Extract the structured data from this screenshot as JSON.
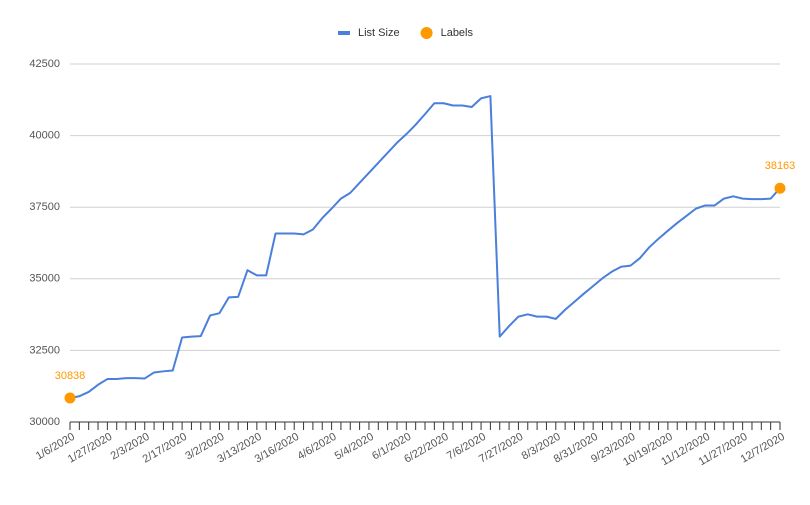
{
  "chart_data": {
    "type": "line",
    "categories": [
      "1/6/2020",
      null,
      null,
      null,
      "1/27/2020",
      null,
      null,
      null,
      "2/3/2020",
      null,
      null,
      null,
      "2/17/2020",
      null,
      null,
      null,
      "3/2/2020",
      null,
      null,
      null,
      "3/13/2020",
      null,
      null,
      null,
      "3/16/2020",
      null,
      null,
      null,
      "4/6/2020",
      null,
      null,
      null,
      "5/4/2020",
      null,
      null,
      null,
      "6/1/2020",
      null,
      null,
      null,
      "6/22/2020",
      null,
      null,
      null,
      "7/6/2020",
      null,
      null,
      null,
      "7/27/2020",
      null,
      null,
      null,
      "8/3/2020",
      null,
      null,
      null,
      "8/31/2020",
      null,
      null,
      null,
      "9/23/2020",
      null,
      null,
      null,
      "10/19/2020",
      null,
      null,
      null,
      "11/12/2020",
      null,
      null,
      null,
      "11/27/2020",
      null,
      null,
      null,
      "12/7/2020"
    ],
    "series": [
      {
        "name": "List Size",
        "style": "line",
        "color": "#4a7fdc",
        "values": [
          30838,
          30900,
          31050,
          31300,
          31500,
          31500,
          31530,
          31530,
          31520,
          31730,
          31770,
          31800,
          32950,
          32980,
          33000,
          33720,
          33800,
          34350,
          34370,
          35300,
          35120,
          35120,
          36580,
          36580,
          36580,
          36550,
          36720,
          37120,
          37450,
          37800,
          38000,
          38350,
          38700,
          39050,
          39400,
          39750,
          40050,
          40380,
          40750,
          41130,
          41130,
          41050,
          41050,
          41000,
          41300,
          41380,
          32980,
          33350,
          33680,
          33760,
          33680,
          33680,
          33600,
          33920,
          34200,
          34480,
          34750,
          35020,
          35250,
          35420,
          35460,
          35720,
          36100,
          36400,
          36680,
          36950,
          37200,
          37450,
          37560,
          37560,
          37800,
          37880,
          37800,
          37780,
          37780,
          37800,
          38163
        ]
      },
      {
        "name": "Labels",
        "style": "points",
        "color": "#ff9900",
        "values": [
          30838,
          null,
          null,
          null,
          null,
          null,
          null,
          null,
          null,
          null,
          null,
          null,
          null,
          null,
          null,
          null,
          null,
          null,
          null,
          null,
          null,
          null,
          null,
          null,
          null,
          null,
          null,
          null,
          null,
          null,
          null,
          null,
          null,
          null,
          null,
          null,
          null,
          null,
          null,
          null,
          null,
          null,
          null,
          null,
          null,
          null,
          null,
          null,
          null,
          null,
          null,
          null,
          null,
          null,
          null,
          null,
          null,
          null,
          null,
          null,
          null,
          null,
          null,
          null,
          null,
          null,
          null,
          null,
          null,
          null,
          null,
          null,
          null,
          null,
          null,
          null,
          38163
        ]
      }
    ],
    "ylim": [
      30000,
      42500
    ],
    "yticks": [
      30000,
      32500,
      35000,
      37500,
      40000,
      42500
    ],
    "grid": true
  }
}
